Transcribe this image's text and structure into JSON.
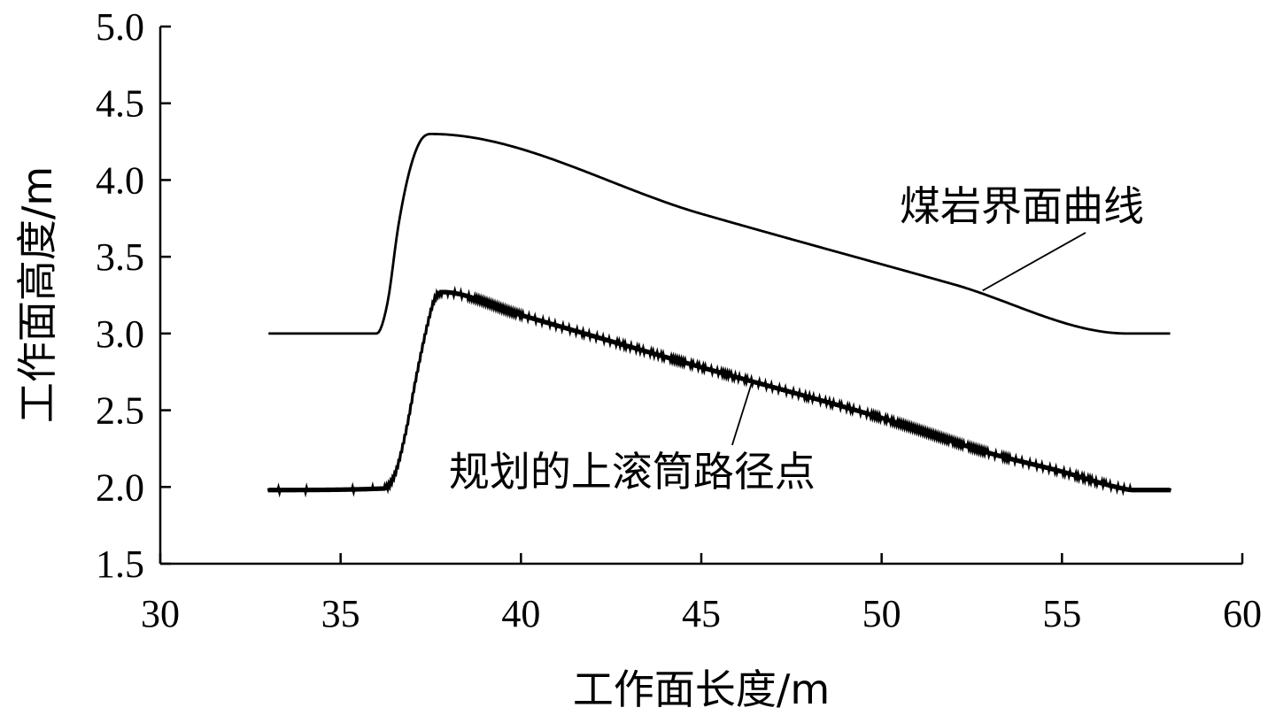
{
  "chart_data": {
    "type": "line",
    "title": "",
    "xlabel": "工作面长度/m",
    "ylabel": "工作面高度/m",
    "xlim": [
      30,
      60
    ],
    "ylim": [
      1.5,
      5.0
    ],
    "xticks": [
      "30",
      "35",
      "40",
      "45",
      "50",
      "55",
      "60"
    ],
    "yticks": [
      "1.5",
      "2.0",
      "2.5",
      "3.0",
      "3.5",
      "4.0",
      "4.5",
      "5.0"
    ],
    "grid": false,
    "legend": "none",
    "series": [
      {
        "name": "煤岩界面曲线",
        "style": "smooth-line",
        "x": [
          33.0,
          36.0,
          36.3,
          36.6,
          36.9,
          37.2,
          37.5,
          45.0,
          52.0,
          56.8,
          58.0
        ],
        "y": [
          3.0,
          3.0,
          3.2,
          3.7,
          4.05,
          4.25,
          4.3,
          3.78,
          3.32,
          3.0,
          3.0
        ]
      },
      {
        "name": "规划的上滚筒路径点",
        "style": "dense-markers",
        "x": [
          33.0,
          36.2,
          36.5,
          36.8,
          37.1,
          37.4,
          37.6,
          37.8,
          40.0,
          45.0,
          50.0,
          53.0,
          55.0,
          56.5,
          57.0,
          58.0
        ],
        "y": [
          1.98,
          1.99,
          2.08,
          2.35,
          2.72,
          3.05,
          3.22,
          3.27,
          3.12,
          2.78,
          2.45,
          2.22,
          2.1,
          2.0,
          1.98,
          1.98
        ]
      }
    ],
    "annotations": [
      {
        "text": "煤岩界面曲线",
        "x": 50.5,
        "y": 3.83,
        "arrow_to": [
          52.8,
          3.28
        ]
      },
      {
        "text": "规划的上滚筒路径点",
        "x": 38.0,
        "y": 2.1,
        "arrow_to": [
          46.4,
          2.68
        ]
      }
    ]
  }
}
